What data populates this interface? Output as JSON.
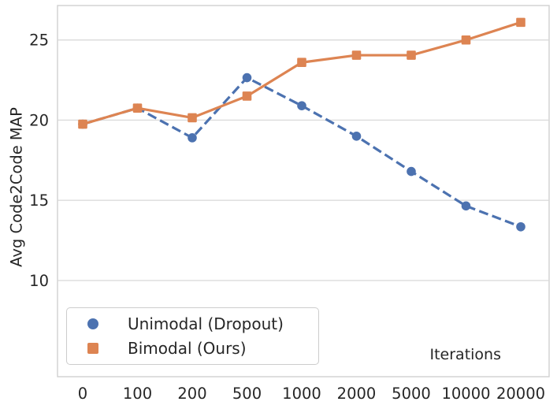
{
  "chart_data": {
    "type": "line",
    "title": "",
    "xlabel": "Iterations",
    "ylabel": "Avg Code2Code MAP",
    "categories": [
      "0",
      "100",
      "200",
      "500",
      "1000",
      "2000",
      "5000",
      "10000",
      "20000"
    ],
    "series": [
      {
        "name": "Unimodal (Dropout)",
        "color": "#4C72B0",
        "marker": "circle",
        "line_style": "dashed",
        "values": [
          19.75,
          20.75,
          18.9,
          22.65,
          20.9,
          19.0,
          16.8,
          14.65,
          13.35
        ]
      },
      {
        "name": "Bimodal (Ours)",
        "color": "#DD8452",
        "marker": "square",
        "line_style": "solid",
        "values": [
          19.75,
          20.75,
          20.15,
          21.5,
          23.6,
          24.05,
          24.05,
          25.0,
          26.1
        ]
      }
    ],
    "yticks": [
      10,
      15,
      20,
      25
    ],
    "ylim": [
      4.0,
      27.15
    ],
    "grid": "horizontal-only",
    "grid_color": "#DCDCDC",
    "frame_color": "#D0D0D0",
    "text_color": "#262626",
    "background": "#FFFFFF",
    "legend_position": "lower-left"
  }
}
